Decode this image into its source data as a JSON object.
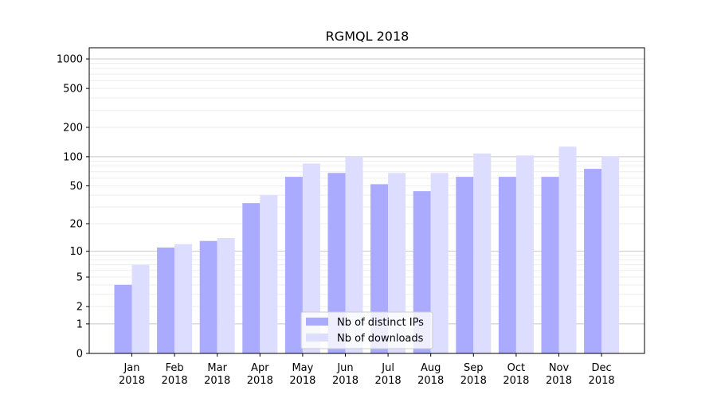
{
  "chart_data": {
    "type": "bar",
    "title": "RGMQL 2018",
    "xlabel": "",
    "ylabel": "",
    "yscale": "log",
    "ylim": [
      0,
      1300
    ],
    "yticks": [
      "0",
      "1",
      "2",
      "5",
      "10",
      "20",
      "50",
      "100",
      "200",
      "500",
      "1000"
    ],
    "categories": [
      [
        "Jan",
        "2018"
      ],
      [
        "Feb",
        "2018"
      ],
      [
        "Mar",
        "2018"
      ],
      [
        "Apr",
        "2018"
      ],
      [
        "May",
        "2018"
      ],
      [
        "Jun",
        "2018"
      ],
      [
        "Jul",
        "2018"
      ],
      [
        "Aug",
        "2018"
      ],
      [
        "Sep",
        "2018"
      ],
      [
        "Oct",
        "2018"
      ],
      [
        "Nov",
        "2018"
      ],
      [
        "Dec",
        "2018"
      ]
    ],
    "series": [
      {
        "name": "Nb of distinct IPs",
        "color": "#aaaaff",
        "values": [
          4,
          11,
          13,
          33,
          62,
          68,
          52,
          44,
          62,
          62,
          62,
          75
        ]
      },
      {
        "name": "Nb of downloads",
        "color": "#ddddff",
        "values": [
          7,
          12,
          14,
          40,
          85,
          100,
          68,
          68,
          108,
          103,
          127,
          101
        ]
      }
    ],
    "grid": true,
    "legend_position": "bottom-center"
  }
}
